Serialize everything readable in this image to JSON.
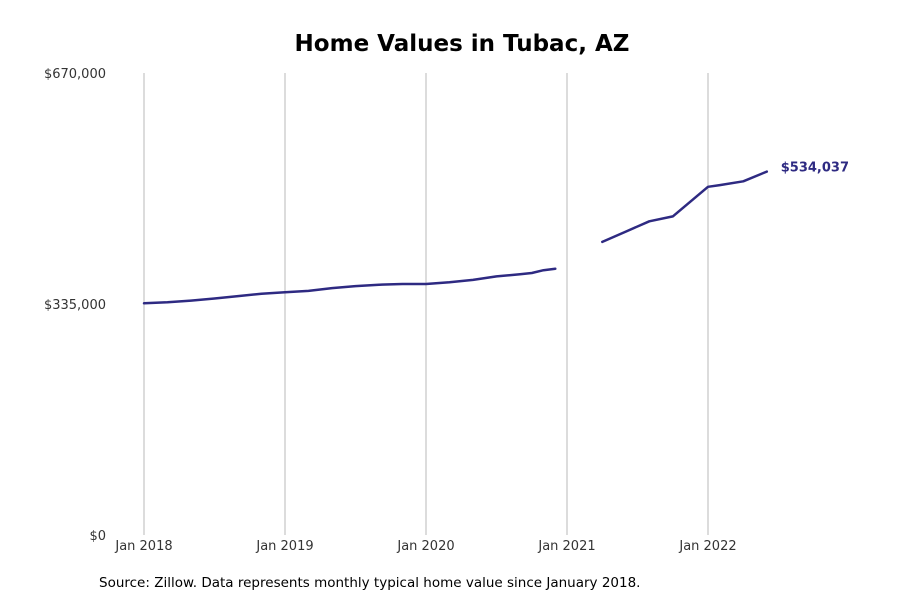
{
  "chart_data": {
    "type": "line",
    "title": "Home Values in Tubac, AZ",
    "xlabel": "",
    "ylabel": "",
    "ylim": [
      0,
      670000
    ],
    "y_ticks": [
      {
        "value": 0,
        "label": "$0"
      },
      {
        "value": 335000,
        "label": "$335,000"
      },
      {
        "value": 670000,
        "label": "$670,000"
      }
    ],
    "x_ticks": [
      {
        "value": "2018-01",
        "label": "Jan 2018"
      },
      {
        "value": "2019-01",
        "label": "Jan 2019"
      },
      {
        "value": "2020-01",
        "label": "Jan 2020"
      },
      {
        "value": "2021-01",
        "label": "Jan 2021"
      },
      {
        "value": "2022-01",
        "label": "Jan 2022"
      }
    ],
    "grid": "vertical",
    "line_color": "#2e2a82",
    "series": [
      {
        "segments": [
          [
            {
              "x": "2018-01",
              "y": 336000
            },
            {
              "x": "2018-03",
              "y": 337500
            },
            {
              "x": "2018-05",
              "y": 340000
            },
            {
              "x": "2018-07",
              "y": 343000
            },
            {
              "x": "2018-09",
              "y": 346500
            },
            {
              "x": "2018-11",
              "y": 350000
            },
            {
              "x": "2019-01",
              "y": 352000
            },
            {
              "x": "2019-03",
              "y": 354000
            },
            {
              "x": "2019-05",
              "y": 358000
            },
            {
              "x": "2019-07",
              "y": 361000
            },
            {
              "x": "2019-09",
              "y": 363000
            },
            {
              "x": "2019-11",
              "y": 364000
            },
            {
              "x": "2020-01",
              "y": 364000
            },
            {
              "x": "2020-03",
              "y": 366500
            },
            {
              "x": "2020-05",
              "y": 370000
            },
            {
              "x": "2020-07",
              "y": 375000
            },
            {
              "x": "2020-09",
              "y": 378000
            },
            {
              "x": "2020-10",
              "y": 380000
            },
            {
              "x": "2020-11",
              "y": 384000
            },
            {
              "x": "2020-12",
              "y": 386000
            }
          ],
          [
            {
              "x": "2021-04",
              "y": 425000
            },
            {
              "x": "2021-06",
              "y": 440000
            },
            {
              "x": "2021-08",
              "y": 455000
            },
            {
              "x": "2021-10",
              "y": 462000
            },
            {
              "x": "2022-01",
              "y": 505000
            },
            {
              "x": "2022-02",
              "y": 507500
            },
            {
              "x": "2022-04",
              "y": 513000
            },
            {
              "x": "2022-06",
              "y": 527000
            }
          ]
        ],
        "end_label": "$534,037"
      }
    ]
  },
  "source_note": "Source: Zillow. Data represents monthly typical home value since January 2018."
}
